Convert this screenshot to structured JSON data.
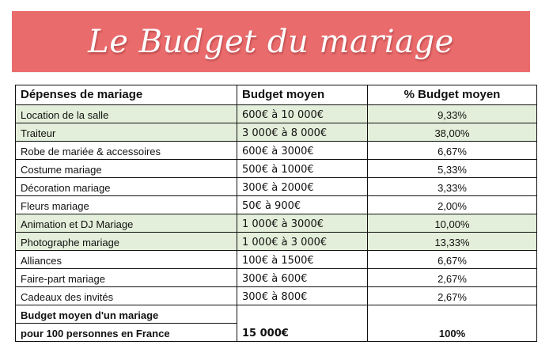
{
  "title": "Le Budget du mariage",
  "colors": {
    "banner": "#ea6b6c",
    "highlight_row": "#e3efda",
    "border": "#111111"
  },
  "table": {
    "headers": [
      "Dépenses de mariage",
      "Budget moyen",
      "% Budget moyen"
    ],
    "rows": [
      {
        "label": "Location de la salle",
        "budget": "600€ à 10 000€",
        "percent": "9,33%",
        "highlight": true
      },
      {
        "label": "Traiteur",
        "budget": "3 000€ à 8 000€",
        "percent": "38,00%",
        "highlight": true
      },
      {
        "label": "Robe de mariée & accessoires",
        "budget": "600€ à 3000€",
        "percent": "6,67%",
        "highlight": false
      },
      {
        "label": "Costume mariage",
        "budget": "500€ à 1000€",
        "percent": "5,33%",
        "highlight": false
      },
      {
        "label": "Décoration mariage",
        "budget": "300€ à 2000€",
        "percent": "3,33%",
        "highlight": false
      },
      {
        "label": "Fleurs mariage",
        "budget": "50€ à 900€",
        "percent": "2,00%",
        "highlight": false
      },
      {
        "label": "Animation et DJ Mariage",
        "budget": "1 000€ à 3000€",
        "percent": "10,00%",
        "highlight": true
      },
      {
        "label": "Photographe mariage",
        "budget": "1 000€ à 3 000€",
        "percent": "13,33%",
        "highlight": true
      },
      {
        "label": "Alliances",
        "budget": "100€ à 1500€",
        "percent": "6,67%",
        "highlight": false
      },
      {
        "label": "Faire-part mariage",
        "budget": "300€ à 600€",
        "percent": "2,67%",
        "highlight": false
      },
      {
        "label": "Cadeaux des invités",
        "budget": "300€ à 800€",
        "percent": "2,67%",
        "highlight": false
      }
    ],
    "total": {
      "label_line1": "Budget moyen d'un mariage",
      "label_line2": "pour 100 personnes en France",
      "budget": "15 000€",
      "percent": "100%"
    }
  }
}
